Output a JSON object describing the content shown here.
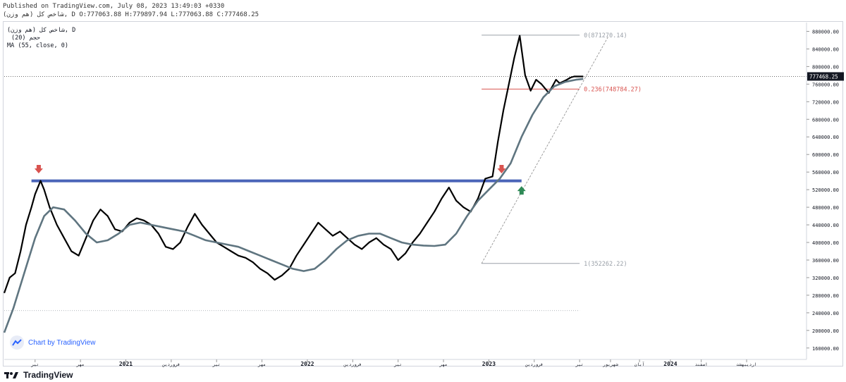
{
  "header": {
    "published": "Published on TradingView.com, July 08, 2023 13:49:03 +0330",
    "symbol_line": "(هم وزن) شاخص كل, D O:777063.88 H:779897.94 L:777063.88 C:777468.25"
  },
  "legend": {
    "line1": "شاخص كل (هم وزن), D",
    "line2": "(20) حجم",
    "line3": "MA (55, close, 0)"
  },
  "watermark": "Chart by TradingView",
  "footer": {
    "brand": "TradingView"
  },
  "colors": {
    "price": "#000000",
    "ma": "#5f7580",
    "resistance": "#4a64b8",
    "fib_top": "#9aa0a8",
    "fib_mid": "#d9534f",
    "fib_bottom": "#9aa0a8",
    "arrow_down": "#d9534f",
    "arrow_up": "#2f8a57",
    "price_tag": "#131722"
  },
  "chart_data": {
    "type": "line",
    "ylim": [
      150000,
      900000
    ],
    "y_ticks": [
      160000,
      200000,
      240000,
      280000,
      320000,
      360000,
      400000,
      440000,
      480000,
      520000,
      560000,
      600000,
      640000,
      680000,
      720000,
      760000,
      800000,
      840000,
      880000
    ],
    "y_tick_labels": [
      "160000.00",
      "200000.00",
      "240000.00",
      "280000.00",
      "320000.00",
      "360000.00",
      "400000.00",
      "440000.00",
      "480000.00",
      "520000.00",
      "560000.00",
      "600000.00",
      "640000.00",
      "680000.00",
      "720000.00",
      "760000.00",
      "800000.00",
      "840000.00",
      "880000.00"
    ],
    "x_range": [
      2020.33,
      2024.75
    ],
    "x_ticks": [
      {
        "x": 2020.5,
        "label": "تیر"
      },
      {
        "x": 2020.75,
        "label": "مهر"
      },
      {
        "x": 2021.0,
        "label": "2021"
      },
      {
        "x": 2021.25,
        "label": "فروردین"
      },
      {
        "x": 2021.5,
        "label": "تیر"
      },
      {
        "x": 2021.75,
        "label": "مهر"
      },
      {
        "x": 2022.0,
        "label": "2022"
      },
      {
        "x": 2022.25,
        "label": "فروردین"
      },
      {
        "x": 2022.5,
        "label": "تیر"
      },
      {
        "x": 2022.75,
        "label": "مهر"
      },
      {
        "x": 2023.0,
        "label": "2023"
      },
      {
        "x": 2023.25,
        "label": "فروردین"
      },
      {
        "x": 2023.5,
        "label": "تیر"
      },
      {
        "x": 2023.67,
        "label": "شهریور"
      },
      {
        "x": 2023.83,
        "label": "آبان"
      },
      {
        "x": 2024.0,
        "label": "2024"
      },
      {
        "x": 2024.17,
        "label": "اسفند"
      },
      {
        "x": 2024.42,
        "label": "اردیبهشت"
      }
    ],
    "series": [
      {
        "name": "شاخص كل (هم وزن)",
        "x": [
          2020.33,
          2020.36,
          2020.39,
          2020.42,
          2020.45,
          2020.48,
          2020.5,
          2020.53,
          2020.55,
          2020.58,
          2020.62,
          2020.66,
          2020.7,
          2020.74,
          2020.78,
          2020.82,
          2020.86,
          2020.9,
          2020.94,
          2020.98,
          2021.02,
          2021.06,
          2021.1,
          2021.14,
          2021.18,
          2021.22,
          2021.26,
          2021.3,
          2021.34,
          2021.38,
          2021.42,
          2021.46,
          2021.5,
          2021.54,
          2021.58,
          2021.62,
          2021.66,
          2021.7,
          2021.74,
          2021.78,
          2021.82,
          2021.86,
          2021.9,
          2021.94,
          2021.98,
          2022.02,
          2022.06,
          2022.1,
          2022.14,
          2022.18,
          2022.22,
          2022.26,
          2022.3,
          2022.34,
          2022.38,
          2022.42,
          2022.46,
          2022.5,
          2022.54,
          2022.58,
          2022.62,
          2022.66,
          2022.7,
          2022.74,
          2022.78,
          2022.82,
          2022.86,
          2022.9,
          2022.94,
          2022.98,
          2023.02,
          2023.05,
          2023.08,
          2023.11,
          2023.14,
          2023.17,
          2023.2,
          2023.23,
          2023.26,
          2023.29,
          2023.31,
          2023.33,
          2023.35,
          2023.37,
          2023.39,
          2023.41,
          2023.43,
          2023.45,
          2023.47,
          2023.49,
          2023.52
        ],
        "values": [
          285000,
          320000,
          330000,
          380000,
          440000,
          480000,
          510000,
          540000,
          520000,
          480000,
          440000,
          410000,
          380000,
          370000,
          410000,
          450000,
          475000,
          460000,
          430000,
          425000,
          445000,
          455000,
          450000,
          440000,
          420000,
          390000,
          385000,
          400000,
          435000,
          465000,
          440000,
          420000,
          400000,
          390000,
          380000,
          370000,
          365000,
          355000,
          340000,
          330000,
          315000,
          325000,
          340000,
          370000,
          395000,
          420000,
          445000,
          430000,
          415000,
          425000,
          410000,
          395000,
          385000,
          400000,
          410000,
          395000,
          385000,
          360000,
          375000,
          400000,
          420000,
          445000,
          470000,
          500000,
          525000,
          495000,
          480000,
          470000,
          500000,
          545000,
          550000,
          630000,
          700000,
          760000,
          820000,
          870000,
          780000,
          745000,
          770000,
          760000,
          750000,
          740000,
          755000,
          770000,
          762000,
          766000,
          770000,
          775000,
          777468,
          777468,
          777468
        ],
        "color": "#000000"
      },
      {
        "name": "MA (55, close, 0)",
        "x": [
          2020.33,
          2020.38,
          2020.44,
          2020.5,
          2020.55,
          2020.6,
          2020.66,
          2020.72,
          2020.78,
          2020.84,
          2020.9,
          2020.96,
          2021.02,
          2021.08,
          2021.14,
          2021.2,
          2021.26,
          2021.32,
          2021.38,
          2021.44,
          2021.5,
          2021.56,
          2021.62,
          2021.68,
          2021.74,
          2021.8,
          2021.86,
          2021.92,
          2021.98,
          2022.04,
          2022.1,
          2022.16,
          2022.22,
          2022.28,
          2022.34,
          2022.4,
          2022.46,
          2022.52,
          2022.58,
          2022.64,
          2022.7,
          2022.76,
          2022.82,
          2022.88,
          2022.94,
          2023.0,
          2023.06,
          2023.12,
          2023.18,
          2023.24,
          2023.3,
          2023.36,
          2023.42,
          2023.48,
          2023.52
        ],
        "values": [
          195000,
          250000,
          330000,
          410000,
          460000,
          480000,
          475000,
          450000,
          420000,
          400000,
          405000,
          420000,
          440000,
          445000,
          440000,
          435000,
          430000,
          425000,
          415000,
          405000,
          400000,
          395000,
          390000,
          380000,
          370000,
          360000,
          350000,
          340000,
          335000,
          340000,
          360000,
          385000,
          405000,
          415000,
          420000,
          420000,
          410000,
          400000,
          395000,
          393000,
          392000,
          395000,
          420000,
          460000,
          495000,
          520000,
          545000,
          580000,
          640000,
          690000,
          730000,
          755000,
          765000,
          770000,
          772000
        ],
        "color": "#5f7580"
      }
    ],
    "annotations": {
      "resistance": {
        "x_start": 2020.48,
        "x_end": 2023.18,
        "y": 540000,
        "color": "#4a64b8"
      },
      "fib_levels": [
        {
          "label": "0(871270.14)",
          "level": 0,
          "value": 871270.14,
          "x_start": 2022.96,
          "x_end": 2023.5,
          "color": "#9aa0a8"
        },
        {
          "label": "0.236(748784.27)",
          "level": 0.236,
          "value": 748784.27,
          "x_start": 2022.96,
          "x_end": 2023.5,
          "color": "#d9534f"
        },
        {
          "label": "1(352262.22)",
          "level": 1,
          "value": 352262.22,
          "x_start": 2022.96,
          "x_end": 2023.5,
          "color": "#9aa0a8"
        }
      ],
      "trend_line": {
        "x": [
          2022.96,
          2023.66
        ],
        "y": [
          352262,
          870000
        ]
      },
      "current_price_line": {
        "y": 777468.25
      },
      "lower_dotted": {
        "y": 245000
      },
      "arrows": [
        {
          "type": "down",
          "x": 2020.52,
          "y": 565000,
          "color": "#d9534f"
        },
        {
          "type": "down",
          "x": 2023.07,
          "y": 565000,
          "color": "#d9534f"
        },
        {
          "type": "up",
          "x": 2023.18,
          "y": 520000,
          "color": "#2f8a57"
        }
      ],
      "price_tag": "777468.25"
    }
  }
}
